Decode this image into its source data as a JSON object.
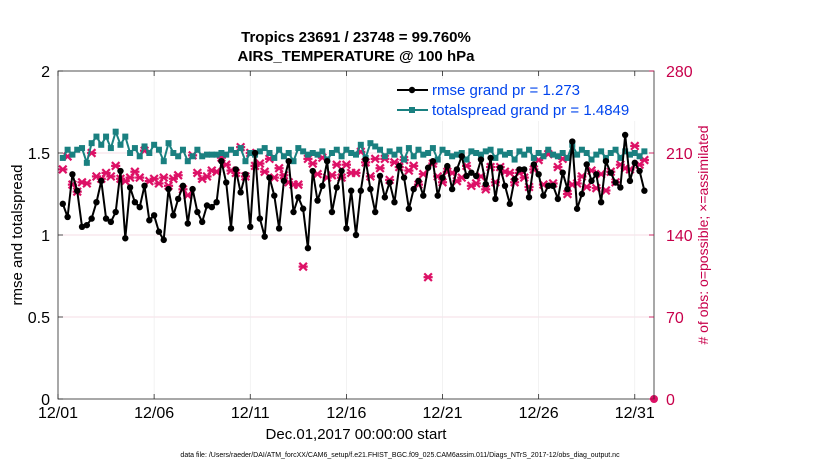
{
  "chart_data": {
    "type": "line",
    "title": "Tropics 23691 / 23748 = 99.760%",
    "subtitle": "AIRS_TEMPERATURE @ 100 hPa",
    "xlabel": "Dec.01,2017 00:00:00 start",
    "ylabel": "rmse and totalspread",
    "y2label": "# of obs: o=possible; ×=assimilated",
    "footnote": "data file: /Users/raeder/DAI/ATM_forcXX/CAM6_setup/f.e21.FHIST_BGC.f09_025.CAM6assim.011/Diags_NTrS_2017-12/obs_diag_output.nc",
    "xlim": [
      1,
      32
    ],
    "ylim": [
      0,
      2
    ],
    "y2lim": [
      0,
      280
    ],
    "xticks": [
      1,
      6,
      11,
      16,
      21,
      26,
      31
    ],
    "xtick_labels": [
      "12/01",
      "12/06",
      "12/11",
      "12/16",
      "12/21",
      "12/26",
      "12/31"
    ],
    "yticks": [
      0,
      0.5,
      1,
      1.5,
      2
    ],
    "ytick_labels": [
      "0",
      "0.5",
      "1",
      "1.5",
      "2"
    ],
    "y2ticks": [
      0,
      70,
      140,
      210,
      280
    ],
    "y2tick_labels": [
      "0",
      "70",
      "140",
      "210",
      "280"
    ],
    "grid": true,
    "legend_position": "top-right",
    "colors": {
      "rmse": "#000000",
      "totalspread": "#1a8080",
      "obs": "#dd1166",
      "legend_text": "#0044ee",
      "right_axis": "#c8004b"
    },
    "series": [
      {
        "name": "rmse grand pr = 1.273",
        "axis": "left",
        "x": [
          1.25,
          1.5,
          1.75,
          2.0,
          2.25,
          2.5,
          2.75,
          3.0,
          3.25,
          3.5,
          3.75,
          4.0,
          4.25,
          4.5,
          4.75,
          5.0,
          5.25,
          5.5,
          5.75,
          6.0,
          6.25,
          6.5,
          6.75,
          7.0,
          7.25,
          7.5,
          7.75,
          8.0,
          8.25,
          8.5,
          8.75,
          9.0,
          9.25,
          9.5,
          9.75,
          10.0,
          10.25,
          10.5,
          10.75,
          11.0,
          11.25,
          11.5,
          11.75,
          12.0,
          12.25,
          12.5,
          12.75,
          13.0,
          13.25,
          13.5,
          13.75,
          14.0,
          14.25,
          14.5,
          14.75,
          15.0,
          15.25,
          15.5,
          15.75,
          16.0,
          16.25,
          16.5,
          16.75,
          17.0,
          17.25,
          17.5,
          17.75,
          18.0,
          18.25,
          18.5,
          18.75,
          19.0,
          19.25,
          19.5,
          19.75,
          20.0,
          20.25,
          20.5,
          20.75,
          21.0,
          21.25,
          21.5,
          21.75,
          22.0,
          22.25,
          22.5,
          22.75,
          23.0,
          23.25,
          23.5,
          23.75,
          24.0,
          24.25,
          24.5,
          24.75,
          25.0,
          25.25,
          25.5,
          25.75,
          26.0,
          26.25,
          26.5,
          26.75,
          27.0,
          27.25,
          27.5,
          27.75,
          28.0,
          28.25,
          28.5,
          28.75,
          29.0,
          29.25,
          29.5,
          29.75,
          30.0,
          30.25,
          30.5,
          30.75,
          31.0,
          31.25,
          31.5
        ],
        "values": [
          1.19,
          1.11,
          1.37,
          1.27,
          1.05,
          1.06,
          1.1,
          1.2,
          1.33,
          1.1,
          1.08,
          1.14,
          1.39,
          0.98,
          1.29,
          1.2,
          1.17,
          1.3,
          1.09,
          1.12,
          1.02,
          0.97,
          1.28,
          1.12,
          1.22,
          1.3,
          1.07,
          1.28,
          1.14,
          1.08,
          1.18,
          1.17,
          1.2,
          1.45,
          1.32,
          1.04,
          1.4,
          1.26,
          1.37,
          1.05,
          1.5,
          1.1,
          0.99,
          1.35,
          1.24,
          1.04,
          1.33,
          1.45,
          1.14,
          1.23,
          1.16,
          0.92,
          1.39,
          1.21,
          1.3,
          1.45,
          1.14,
          1.29,
          1.39,
          1.04,
          1.27,
          1.0,
          1.27,
          1.46,
          1.28,
          1.14,
          1.36,
          1.23,
          1.32,
          1.2,
          1.42,
          1.35,
          1.16,
          1.28,
          1.33,
          1.24,
          1.41,
          1.45,
          1.24,
          1.35,
          1.42,
          1.28,
          1.4,
          1.48,
          1.36,
          1.38,
          1.36,
          1.46,
          1.31,
          1.47,
          1.22,
          1.41,
          1.3,
          1.19,
          1.34,
          1.4,
          1.4,
          1.23,
          1.43,
          1.37,
          1.24,
          1.3,
          1.3,
          1.22,
          1.38,
          1.28,
          1.57,
          1.16,
          1.25,
          1.43,
          1.33,
          1.37,
          1.2,
          1.45,
          1.38,
          1.32,
          1.29,
          1.61,
          1.33,
          1.44,
          1.39,
          1.27
        ]
      },
      {
        "name": "totalspread grand pr = 1.4849",
        "axis": "left",
        "x": [
          1.25,
          1.5,
          1.75,
          2.0,
          2.25,
          2.5,
          2.75,
          3.0,
          3.25,
          3.5,
          3.75,
          4.0,
          4.25,
          4.5,
          4.75,
          5.0,
          5.25,
          5.5,
          5.75,
          6.0,
          6.25,
          6.5,
          6.75,
          7.0,
          7.25,
          7.5,
          7.75,
          8.0,
          8.25,
          8.5,
          8.75,
          9.0,
          9.25,
          9.5,
          9.75,
          10.0,
          10.25,
          10.5,
          10.75,
          11.0,
          11.25,
          11.5,
          11.75,
          12.0,
          12.25,
          12.5,
          12.75,
          13.0,
          13.25,
          13.5,
          13.75,
          14.0,
          14.25,
          14.5,
          14.75,
          15.0,
          15.25,
          15.5,
          15.75,
          16.0,
          16.25,
          16.5,
          16.75,
          17.0,
          17.25,
          17.5,
          17.75,
          18.0,
          18.25,
          18.5,
          18.75,
          19.0,
          19.25,
          19.5,
          19.75,
          20.0,
          20.25,
          20.5,
          20.75,
          21.0,
          21.25,
          21.5,
          21.75,
          22.0,
          22.25,
          22.5,
          22.75,
          23.0,
          23.25,
          23.5,
          23.75,
          24.0,
          24.25,
          24.5,
          24.75,
          25.0,
          25.25,
          25.5,
          25.75,
          26.0,
          26.25,
          26.5,
          26.75,
          27.0,
          27.25,
          27.5,
          27.75,
          28.0,
          28.25,
          28.5,
          28.75,
          29.0,
          29.25,
          29.5,
          29.75,
          30.0,
          30.25,
          30.5,
          30.75,
          31.0,
          31.25,
          31.5
        ],
        "values": [
          1.47,
          1.52,
          1.49,
          1.52,
          1.53,
          1.44,
          1.56,
          1.6,
          1.55,
          1.6,
          1.53,
          1.63,
          1.55,
          1.6,
          1.5,
          1.53,
          1.48,
          1.54,
          1.5,
          1.55,
          1.52,
          1.45,
          1.56,
          1.5,
          1.48,
          1.52,
          1.45,
          1.48,
          1.52,
          1.48,
          1.49,
          1.49,
          1.49,
          1.5,
          1.49,
          1.52,
          1.5,
          1.53,
          1.45,
          1.5,
          1.49,
          1.51,
          1.53,
          1.5,
          1.47,
          1.52,
          1.48,
          1.5,
          1.45,
          1.53,
          1.51,
          1.49,
          1.5,
          1.49,
          1.51,
          1.46,
          1.5,
          1.52,
          1.48,
          1.52,
          1.5,
          1.49,
          1.55,
          1.47,
          1.56,
          1.54,
          1.52,
          1.48,
          1.51,
          1.49,
          1.52,
          1.46,
          1.53,
          1.48,
          1.52,
          1.49,
          1.5,
          1.53,
          1.46,
          1.52,
          1.5,
          1.48,
          1.49,
          1.5,
          1.46,
          1.51,
          1.5,
          1.49,
          1.51,
          1.52,
          1.47,
          1.51,
          1.49,
          1.5,
          1.46,
          1.51,
          1.49,
          1.52,
          1.47,
          1.5,
          1.48,
          1.52,
          1.49,
          1.48,
          1.5,
          1.47,
          1.55,
          1.49,
          1.52,
          1.5,
          1.46,
          1.49,
          1.51,
          1.47,
          1.5,
          1.52,
          1.47,
          1.51,
          1.49,
          1.5,
          1.48,
          1.51
        ]
      },
      {
        "name": "obs assimilated",
        "axis": "right",
        "marker": "x",
        "x": [
          1.25,
          1.5,
          1.75,
          2.0,
          2.25,
          2.5,
          2.75,
          3.0,
          3.25,
          3.5,
          3.75,
          4.0,
          4.25,
          4.5,
          4.75,
          5.0,
          5.25,
          5.5,
          5.75,
          6.0,
          6.25,
          6.5,
          6.75,
          7.0,
          7.25,
          7.5,
          7.75,
          8.0,
          8.25,
          8.5,
          8.75,
          9.0,
          9.25,
          9.5,
          9.75,
          10.0,
          10.25,
          10.5,
          10.75,
          11.0,
          11.25,
          11.5,
          11.75,
          12.0,
          12.25,
          12.5,
          12.75,
          13.0,
          13.25,
          13.5,
          13.75,
          14.0,
          14.25,
          14.5,
          14.75,
          15.0,
          15.25,
          15.5,
          15.75,
          16.0,
          16.25,
          16.5,
          16.75,
          17.0,
          17.25,
          17.5,
          17.75,
          18.0,
          18.25,
          18.5,
          18.75,
          19.0,
          19.25,
          19.5,
          19.75,
          20.0,
          20.25,
          20.5,
          20.75,
          21.0,
          21.25,
          21.5,
          21.75,
          22.0,
          22.25,
          22.5,
          22.75,
          23.0,
          23.25,
          23.5,
          23.75,
          24.0,
          24.25,
          24.5,
          24.75,
          25.0,
          25.25,
          25.5,
          25.75,
          26.0,
          26.25,
          26.5,
          26.75,
          27.0,
          27.25,
          27.5,
          27.75,
          28.0,
          28.25,
          28.5,
          28.75,
          29.0,
          29.25,
          29.5,
          29.75,
          30.0,
          30.25,
          30.5,
          30.75,
          31.0,
          31.25,
          31.5
        ],
        "values": [
          196,
          207,
          183,
          177,
          185,
          184,
          210,
          190,
          188,
          193,
          190,
          199,
          188,
          186,
          189,
          194,
          189,
          212,
          186,
          188,
          184,
          189,
          182,
          188,
          191,
          179,
          174,
          208,
          193,
          188,
          190,
          195,
          194,
          206,
          200,
          195,
          193,
          215,
          190,
          210,
          199,
          201,
          194,
          205,
          189,
          197,
          191,
          185,
          183,
          183,
          113,
          205,
          201,
          192,
          206,
          189,
          191,
          200,
          189,
          200,
          193,
          193,
          211,
          202,
          190,
          205,
          197,
          205,
          187,
          202,
          198,
          204,
          195,
          199,
          183,
          192,
          104,
          201,
          190,
          185,
          194,
          193,
          186,
          189,
          199,
          182,
          184,
          190,
          179,
          198,
          185,
          198,
          194,
          193,
          185,
          193,
          189,
          181,
          196,
          204,
          183,
          209,
          184,
          198,
          205,
          175,
          183,
          184,
          190,
          181,
          195,
          180,
          192,
          178,
          194,
          185,
          200,
          197,
          196,
          216,
          200,
          204
        ]
      }
    ]
  }
}
